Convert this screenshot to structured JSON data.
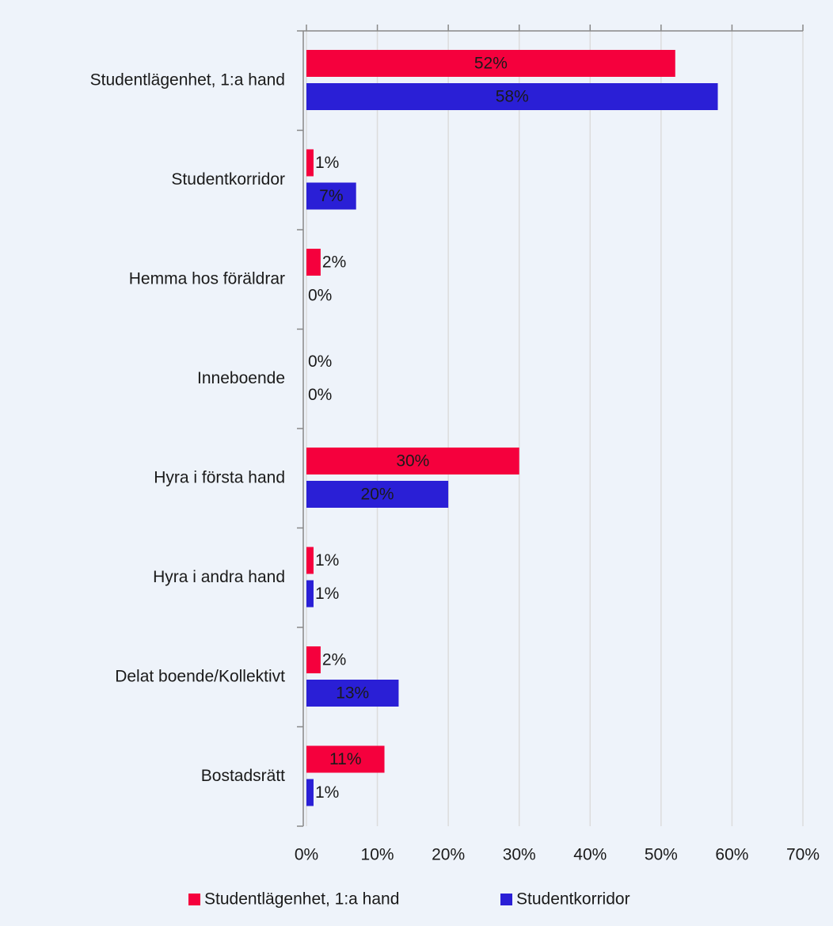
{
  "chart_data": {
    "type": "bar",
    "orientation": "horizontal",
    "categories": [
      "Studentlägenhet, 1:a hand",
      "Studentkorridor",
      "Hemma hos föräldrar",
      "Inneboende",
      "Hyra i första hand",
      "Hyra i andra hand",
      "Delat boende/Kollektivt",
      "Bostadsrätt"
    ],
    "series": [
      {
        "name": "Studentlägenhet, 1:a hand",
        "color": "#f5003d",
        "values": [
          52,
          1,
          2,
          0,
          30,
          1,
          2,
          11
        ],
        "value_labels": [
          "52%",
          "1%",
          "2%",
          "0%",
          "30%",
          "1%",
          "2%",
          "11%"
        ]
      },
      {
        "name": "Studentkorridor",
        "color": "#2a1fd6",
        "values": [
          58,
          7,
          0,
          0,
          20,
          1,
          13,
          1
        ],
        "value_labels": [
          "58%",
          "7%",
          "0%",
          "0%",
          "20%",
          "1%",
          "13%",
          "1%"
        ]
      }
    ],
    "xlim": [
      0,
      70
    ],
    "xticks": [
      {
        "value": 0,
        "label": "0%"
      },
      {
        "value": 10,
        "label": "10%"
      },
      {
        "value": 20,
        "label": "20%"
      },
      {
        "value": 30,
        "label": "30%"
      },
      {
        "value": 40,
        "label": "40%"
      },
      {
        "value": 50,
        "label": "50%"
      },
      {
        "value": 60,
        "label": "60%"
      },
      {
        "value": 70,
        "label": "70%"
      }
    ],
    "grid": true,
    "legend": "bottom"
  }
}
